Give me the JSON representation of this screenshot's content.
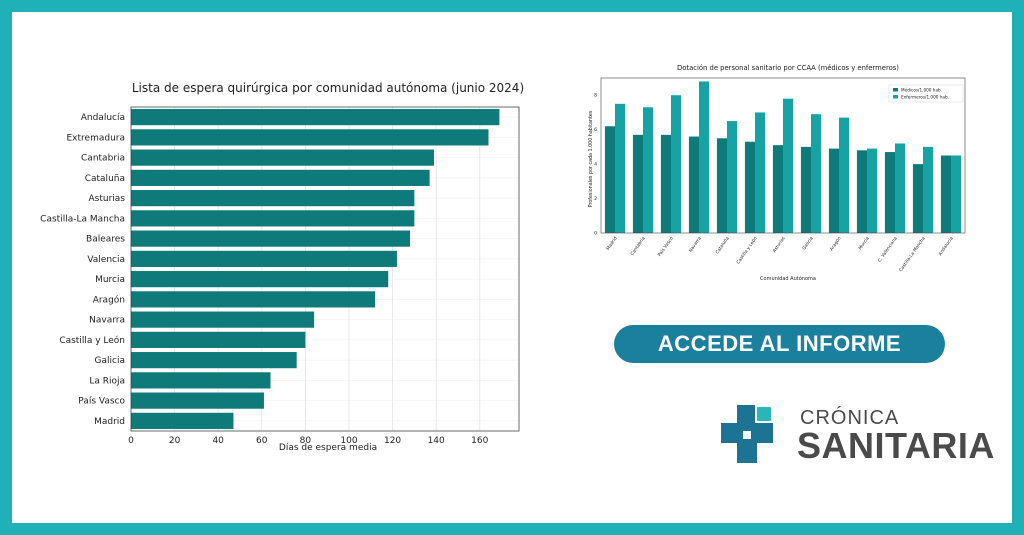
{
  "colors": {
    "frame": "#1fb0b8",
    "bar_left": "#0e7a7a",
    "series_medicos": "#0e7a7a",
    "series_enfermeros": "#17a3a3",
    "cta_bg": "#1b7f9e",
    "logo_dark": "#1c7394",
    "logo_light": "#2bb5b5",
    "logo_text": "#4a4a4a"
  },
  "cta": {
    "label": "ACCEDE AL INFORME",
    "icon": "none"
  },
  "logo": {
    "top": "CRÓNICA",
    "bottom": "SANITARIA",
    "icon": "medical-cross-icon"
  },
  "chart_data": [
    {
      "type": "bar",
      "orientation": "horizontal",
      "title": "Lista de espera quirúrgica por comunidad autónoma (junio 2024)",
      "xlabel": "Días de espera media",
      "ylabel": "",
      "xlim": [
        0,
        178
      ],
      "xticks": [
        0,
        20,
        40,
        60,
        80,
        100,
        120,
        140,
        160
      ],
      "grid": true,
      "categories": [
        "Andalucía",
        "Extremadura",
        "Cantabria",
        "Cataluña",
        "Asturias",
        "Castilla-La Mancha",
        "Baleares",
        "Valencia",
        "Murcia",
        "Aragón",
        "Navarra",
        "Castilla y León",
        "Galicia",
        "La Rioja",
        "País Vasco",
        "Madrid"
      ],
      "values": [
        169,
        164,
        139,
        137,
        130,
        130,
        128,
        122,
        118,
        112,
        84,
        80,
        76,
        64,
        61,
        47
      ]
    },
    {
      "type": "bar",
      "title": "Dotación de personal sanitario por CCAA (médicos y enfermeros)",
      "xlabel": "Comunidad Autónoma",
      "ylabel": "Profesionales por cada 1.000 habitantes",
      "ylim": [
        0,
        9
      ],
      "yticks": [
        0,
        2,
        4,
        6,
        8
      ],
      "legend": "top-right",
      "categories": [
        "Madrid",
        "Cantabria",
        "País Vasco",
        "Navarra",
        "Cataluña",
        "Castilla y León",
        "Asturias",
        "Galicia",
        "Aragón",
        "Murcia",
        "C. Valenciana",
        "Castilla-La Mancha",
        "Andalucía"
      ],
      "series": [
        {
          "name": "Médicos/1.000 hab.",
          "values": [
            6.2,
            5.7,
            5.7,
            5.6,
            5.5,
            5.3,
            5.1,
            5.0,
            4.9,
            4.8,
            4.7,
            4.0,
            4.5
          ]
        },
        {
          "name": "Enfermeros/1.000 hab.",
          "values": [
            7.5,
            7.3,
            8.0,
            8.8,
            6.5,
            7.0,
            7.8,
            6.9,
            6.7,
            4.9,
            5.2,
            5.0,
            4.5
          ]
        }
      ]
    }
  ]
}
